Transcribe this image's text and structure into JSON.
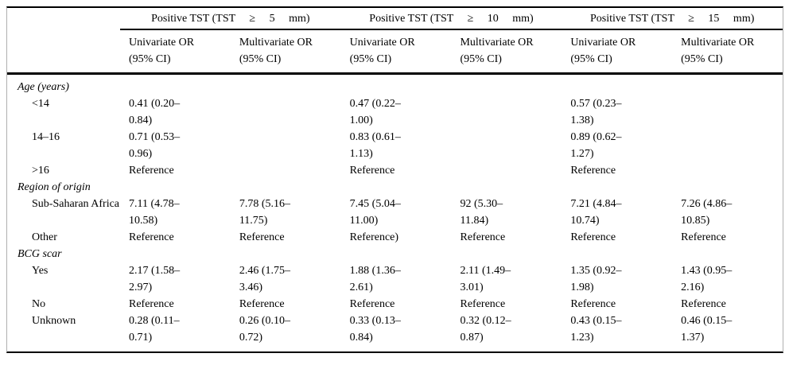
{
  "table": {
    "groups": [
      {
        "title": "Positive TST (TST     ≥     5     mm)"
      },
      {
        "title": "Positive TST (TST     ≥     10     mm)"
      },
      {
        "title": "Positive TST (TST     ≥     15     mm)"
      }
    ],
    "col_headers": [
      "Univariate OR\n(95% CI)",
      "Multivariate OR\n(95% CI)",
      "Univariate OR\n(95% CI)",
      "Multivariate OR\n(95% CI)",
      "Univariate OR\n(95% CI)",
      "Multivariate OR\n(95% CI)"
    ],
    "rows": [
      {
        "type": "section",
        "label": "Age (years)"
      },
      {
        "type": "data",
        "label": "<14",
        "cells": [
          "0.41 (0.20–\n0.84)",
          "",
          "0.47 (0.22–\n1.00)",
          "",
          "0.57 (0.23–\n1.38)",
          ""
        ]
      },
      {
        "type": "data",
        "label": "14–16",
        "cells": [
          "0.71 (0.53–\n0.96)",
          "",
          "0.83 (0.61–\n1.13)",
          "",
          "0.89 (0.62–\n1.27)",
          ""
        ]
      },
      {
        "type": "data",
        "label": ">16",
        "cells": [
          "Reference",
          "",
          "Reference",
          "",
          "Reference",
          ""
        ]
      },
      {
        "type": "section",
        "label": "Region of origin"
      },
      {
        "type": "data",
        "label": "Sub-Saharan Africa",
        "cells": [
          "7.11 (4.78–\n10.58)",
          "7.78 (5.16–\n11.75)",
          "7.45 (5.04–\n11.00)",
          "92 (5.30–\n11.84)",
          "7.21 (4.84–\n10.74)",
          "7.26 (4.86–\n10.85)"
        ]
      },
      {
        "type": "data",
        "label": "Other",
        "cells": [
          "Reference",
          "Reference",
          "Reference)",
          "Reference",
          "Reference",
          "Reference"
        ]
      },
      {
        "type": "section",
        "label": "BCG scar"
      },
      {
        "type": "data",
        "label": "Yes",
        "cells": [
          "2.17 (1.58–\n2.97)",
          "2.46 (1.75–\n3.46)",
          "1.88 (1.36–\n2.61)",
          "2.11 (1.49–\n3.01)",
          "1.35 (0.92–\n1.98)",
          "1.43 (0.95–\n2.16)"
        ]
      },
      {
        "type": "data",
        "label": "No",
        "cells": [
          "Reference",
          "Reference",
          "Reference",
          "Reference",
          "Reference",
          "Reference"
        ]
      },
      {
        "type": "data",
        "label": "Unknown",
        "cells": [
          "0.28 (0.11–\n0.71)",
          "0.26 (0.10–\n0.72)",
          "0.33 (0.13–\n0.84)",
          "0.32 (0.12–\n0.87)",
          "0.43 (0.15–\n1.23)",
          "0.46 (0.15–\n1.37)"
        ]
      }
    ]
  }
}
